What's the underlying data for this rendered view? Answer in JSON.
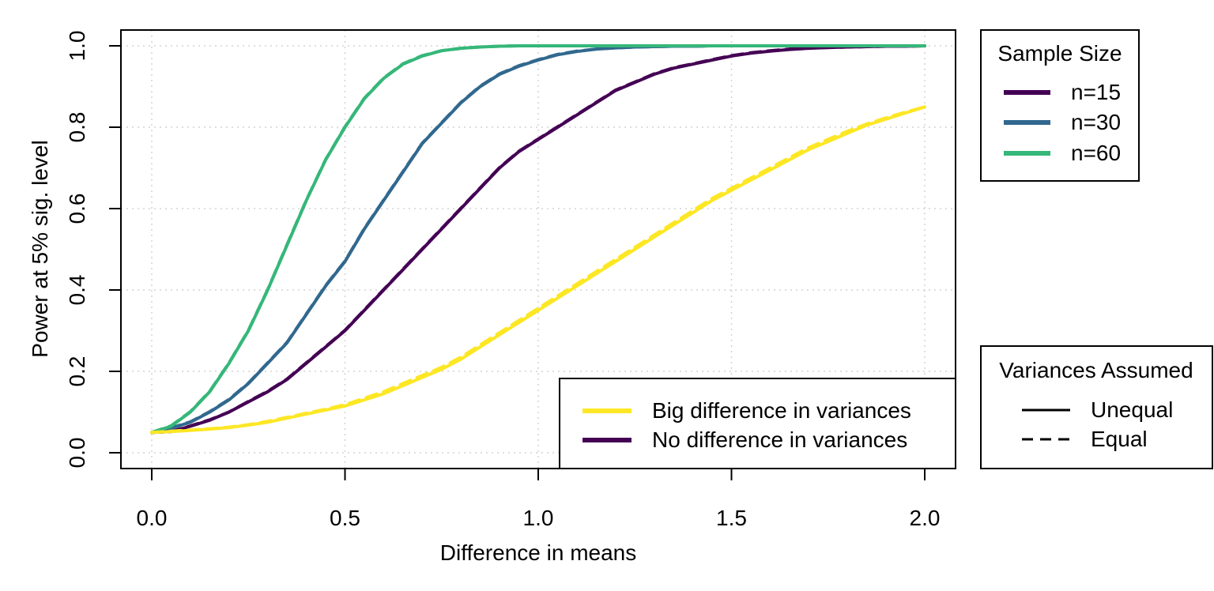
{
  "chart_data": {
    "type": "line",
    "xlabel": "Difference in means",
    "ylabel": "Power at 5% sig. level",
    "xlim": [
      0,
      2
    ],
    "ylim": [
      0,
      1
    ],
    "x_ticks": [
      "0.0",
      "0.5",
      "1.0",
      "1.5",
      "2.0"
    ],
    "y_ticks": [
      "0.0",
      "0.2",
      "0.4",
      "0.6",
      "0.8",
      "1.0"
    ],
    "grid": true,
    "x": [
      0,
      0.05,
      0.1,
      0.15,
      0.2,
      0.25,
      0.3,
      0.35,
      0.4,
      0.45,
      0.5,
      0.55,
      0.6,
      0.65,
      0.7,
      0.75,
      0.8,
      0.85,
      0.9,
      0.95,
      1.0,
      1.05,
      1.1,
      1.15,
      1.2,
      1.25,
      1.3,
      1.35,
      1.4,
      1.45,
      1.5,
      1.55,
      1.6,
      1.65,
      1.7,
      1.75,
      1.8,
      1.85,
      1.9,
      1.95,
      2.0
    ],
    "series": [
      {
        "name": "n=15",
        "sample_size": "n=15",
        "variances": "No difference in variances",
        "assumed": "Unequal",
        "color": "#440154",
        "dash": false,
        "values": [
          0.05,
          0.052,
          0.065,
          0.08,
          0.1,
          0.125,
          0.15,
          0.18,
          0.22,
          0.26,
          0.3,
          0.35,
          0.4,
          0.45,
          0.5,
          0.55,
          0.6,
          0.65,
          0.7,
          0.74,
          0.77,
          0.8,
          0.83,
          0.86,
          0.89,
          0.91,
          0.93,
          0.945,
          0.955,
          0.965,
          0.975,
          0.982,
          0.987,
          0.991,
          0.994,
          0.996,
          0.997,
          0.998,
          0.999,
          0.999,
          1.0
        ]
      },
      {
        "name": "n=15",
        "sample_size": "n=15",
        "variances": "No difference in variances",
        "assumed": "Equal",
        "color": "#440154",
        "dash": true,
        "values": [
          0.05,
          0.052,
          0.066,
          0.081,
          0.1,
          0.126,
          0.151,
          0.181,
          0.221,
          0.261,
          0.301,
          0.351,
          0.401,
          0.451,
          0.501,
          0.551,
          0.601,
          0.651,
          0.701,
          0.741,
          0.771,
          0.801,
          0.831,
          0.861,
          0.891,
          0.911,
          0.931,
          0.946,
          0.956,
          0.966,
          0.976,
          0.983,
          0.988,
          0.992,
          0.995,
          0.996,
          0.997,
          0.998,
          0.999,
          0.999,
          1.0
        ]
      },
      {
        "name": "n=30",
        "sample_size": "n=30",
        "variances": "No difference in variances",
        "assumed": "Unequal",
        "color": "#31688E",
        "dash": false,
        "values": [
          0.05,
          0.06,
          0.075,
          0.1,
          0.13,
          0.17,
          0.22,
          0.27,
          0.34,
          0.41,
          0.47,
          0.55,
          0.62,
          0.69,
          0.76,
          0.81,
          0.86,
          0.9,
          0.93,
          0.95,
          0.965,
          0.978,
          0.986,
          0.992,
          0.995,
          0.997,
          0.998,
          0.999,
          0.999,
          1.0,
          1.0,
          1.0,
          1.0,
          1.0,
          1.0,
          1.0,
          1.0,
          1.0,
          1.0,
          1.0,
          1.0
        ]
      },
      {
        "name": "n=30",
        "sample_size": "n=30",
        "variances": "No difference in variances",
        "assumed": "Equal",
        "color": "#31688E",
        "dash": true,
        "values": [
          0.05,
          0.061,
          0.076,
          0.101,
          0.131,
          0.171,
          0.221,
          0.271,
          0.341,
          0.411,
          0.471,
          0.551,
          0.621,
          0.691,
          0.761,
          0.811,
          0.861,
          0.901,
          0.931,
          0.951,
          0.966,
          0.979,
          0.987,
          0.992,
          0.995,
          0.997,
          0.998,
          0.999,
          0.999,
          1.0,
          1.0,
          1.0,
          1.0,
          1.0,
          1.0,
          1.0,
          1.0,
          1.0,
          1.0,
          1.0,
          1.0
        ]
      },
      {
        "name": "n=60",
        "sample_size": "n=60",
        "variances": "No difference in variances",
        "assumed": "Unequal",
        "color": "#35B779",
        "dash": false,
        "values": [
          0.05,
          0.065,
          0.1,
          0.15,
          0.22,
          0.3,
          0.4,
          0.51,
          0.62,
          0.72,
          0.8,
          0.87,
          0.92,
          0.955,
          0.975,
          0.988,
          0.994,
          0.997,
          0.999,
          1.0,
          1.0,
          1.0,
          1.0,
          1.0,
          1.0,
          1.0,
          1.0,
          1.0,
          1.0,
          1.0,
          1.0,
          1.0,
          1.0,
          1.0,
          1.0,
          1.0,
          1.0,
          1.0,
          1.0,
          1.0,
          1.0
        ]
      },
      {
        "name": "n=60",
        "sample_size": "n=60",
        "variances": "No difference in variances",
        "assumed": "Equal",
        "color": "#35B779",
        "dash": true,
        "values": [
          0.05,
          0.066,
          0.101,
          0.151,
          0.221,
          0.301,
          0.401,
          0.511,
          0.621,
          0.721,
          0.801,
          0.871,
          0.921,
          0.956,
          0.976,
          0.988,
          0.994,
          0.997,
          0.999,
          1.0,
          1.0,
          1.0,
          1.0,
          1.0,
          1.0,
          1.0,
          1.0,
          1.0,
          1.0,
          1.0,
          1.0,
          1.0,
          1.0,
          1.0,
          1.0,
          1.0,
          1.0,
          1.0,
          1.0,
          1.0,
          1.0
        ]
      },
      {
        "name": "Big difference in variances",
        "sample_size": "n=15",
        "variances": "Big difference in variances",
        "assumed": "Unequal",
        "color": "#FDE725",
        "dash": false,
        "values": [
          0.05,
          0.052,
          0.055,
          0.058,
          0.062,
          0.068,
          0.075,
          0.085,
          0.095,
          0.105,
          0.115,
          0.13,
          0.145,
          0.165,
          0.185,
          0.205,
          0.23,
          0.26,
          0.29,
          0.32,
          0.35,
          0.38,
          0.41,
          0.44,
          0.47,
          0.5,
          0.53,
          0.56,
          0.59,
          0.62,
          0.645,
          0.67,
          0.695,
          0.72,
          0.745,
          0.765,
          0.785,
          0.805,
          0.82,
          0.835,
          0.85
        ]
      },
      {
        "name": "Big difference in variances",
        "sample_size": "n=15",
        "variances": "Big difference in variances",
        "assumed": "Equal",
        "color": "#FDE725",
        "dash": true,
        "values": [
          0.05,
          0.053,
          0.056,
          0.059,
          0.063,
          0.069,
          0.077,
          0.087,
          0.097,
          0.107,
          0.118,
          0.134,
          0.15,
          0.17,
          0.19,
          0.21,
          0.235,
          0.265,
          0.295,
          0.325,
          0.355,
          0.385,
          0.415,
          0.445,
          0.475,
          0.505,
          0.535,
          0.565,
          0.595,
          0.625,
          0.65,
          0.675,
          0.7,
          0.725,
          0.75,
          0.77,
          0.79,
          0.808,
          0.823,
          0.837,
          0.85
        ]
      }
    ]
  },
  "legends": {
    "sample_size": {
      "title": "Sample Size",
      "items": [
        {
          "label": "n=15",
          "color": "#440154"
        },
        {
          "label": "n=30",
          "color": "#31688E"
        },
        {
          "label": "n=60",
          "color": "#35B779"
        }
      ]
    },
    "variances_diff": {
      "items": [
        {
          "label": "Big difference in variances",
          "color": "#FDE725"
        },
        {
          "label": "No difference in variances",
          "color": "#440154"
        }
      ]
    },
    "variances_assumed": {
      "title": "Variances Assumed",
      "items": [
        {
          "label": "Unequal",
          "style": "solid"
        },
        {
          "label": "Equal",
          "style": "dashed"
        }
      ]
    }
  }
}
